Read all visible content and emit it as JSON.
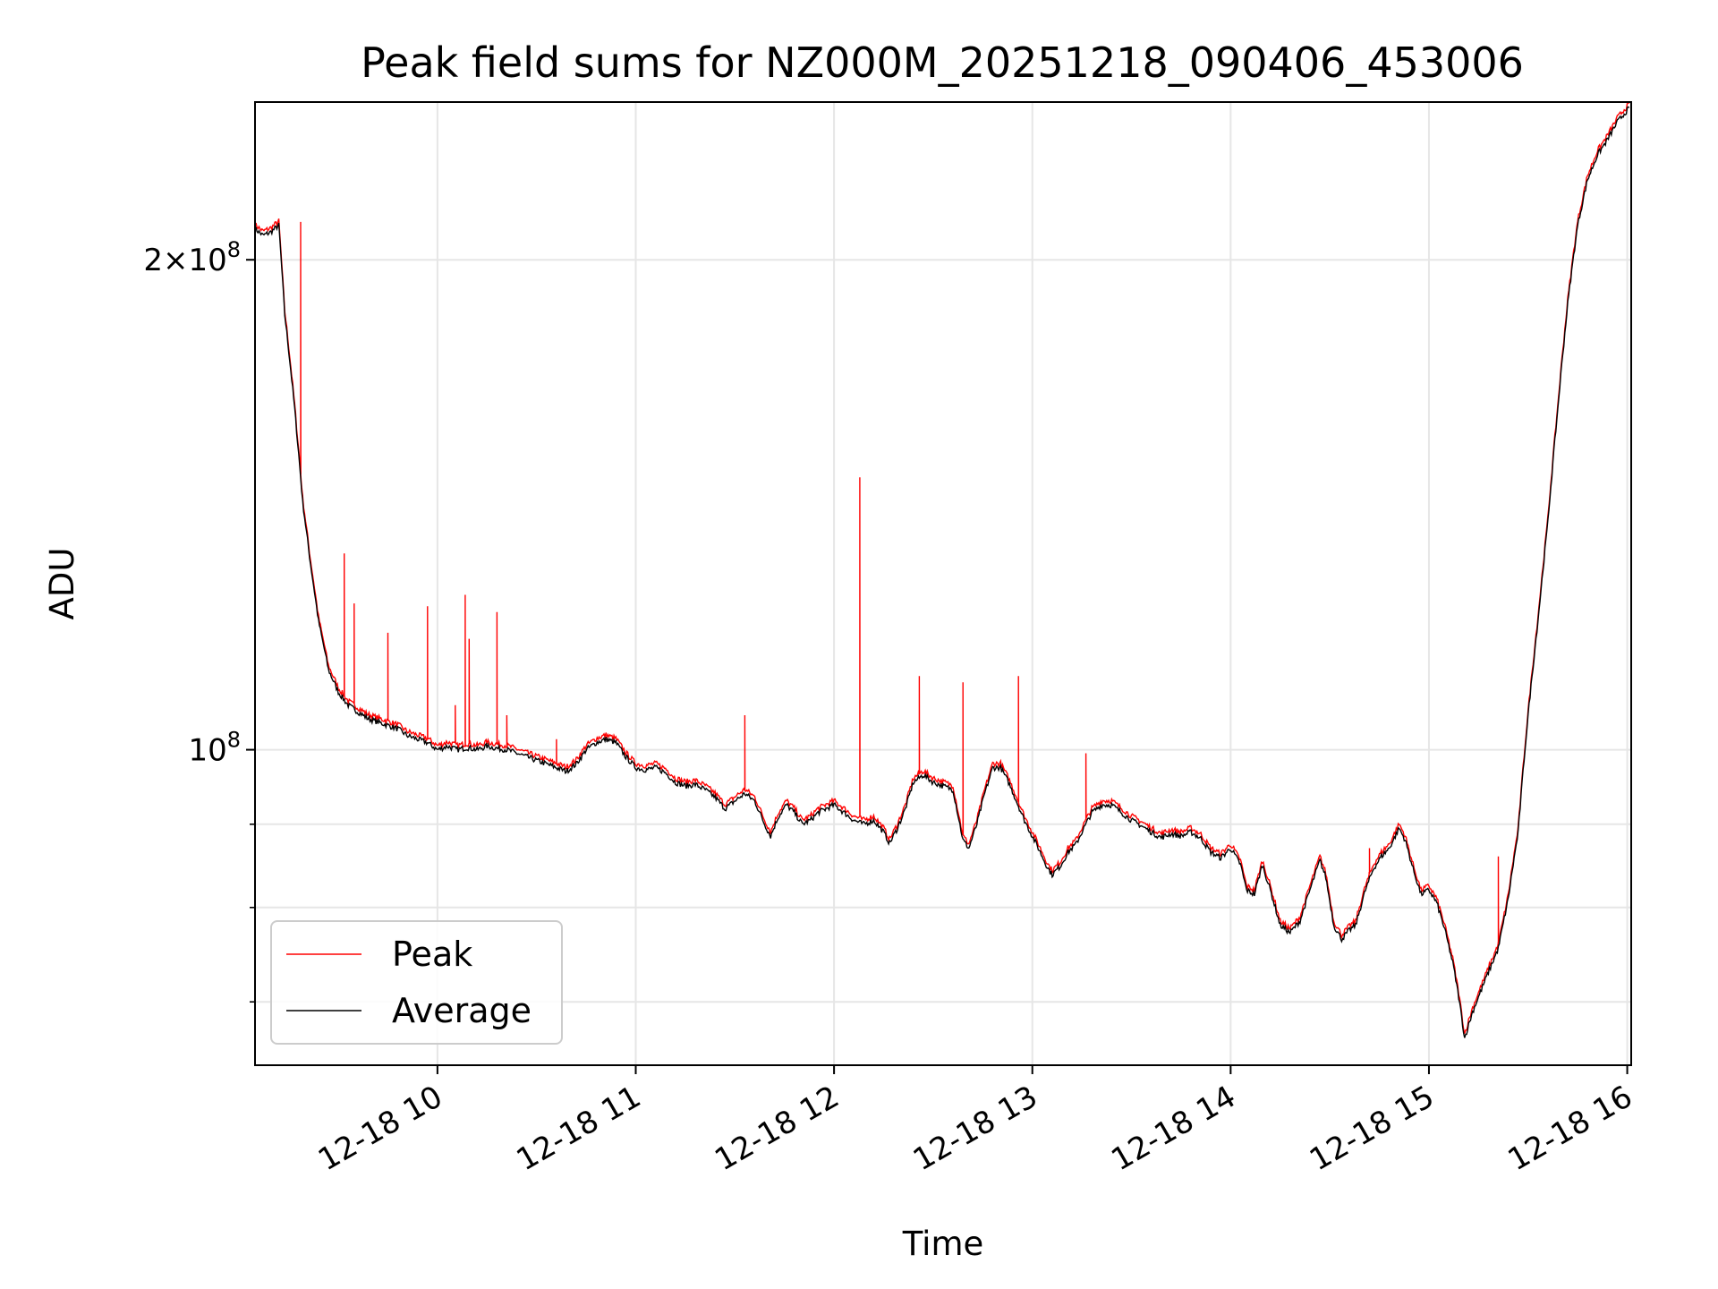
{
  "chart_data": {
    "type": "line",
    "title": "Peak field sums for NZ000M_20251218_090406_453006",
    "xlabel": "Time",
    "ylabel": "ADU",
    "yscale": "log",
    "grid": true,
    "legend_position": "lower-left",
    "xlim": [
      9.08,
      16.02
    ],
    "ylim": [
      64000000,
      250000000
    ],
    "x_ticks": [
      {
        "value": 10,
        "label": "12-18 10"
      },
      {
        "value": 11,
        "label": "12-18 11"
      },
      {
        "value": 12,
        "label": "12-18 12"
      },
      {
        "value": 13,
        "label": "12-18 13"
      },
      {
        "value": 14,
        "label": "12-18 14"
      },
      {
        "value": 15,
        "label": "12-18 15"
      },
      {
        "value": 16,
        "label": "12-18 16"
      }
    ],
    "y_major_ticks": [
      {
        "value": 100000000,
        "base": "10",
        "exp": "8"
      },
      {
        "value": 200000000,
        "mant": "2",
        "base": "10",
        "exp": "8"
      }
    ],
    "y_minor_ticks": [
      70000000,
      80000000,
      90000000
    ],
    "series": [
      {
        "name": "Average",
        "color": "#000000",
        "points": [
          [
            9.08,
            209000000.0
          ],
          [
            9.12,
            207000000.0
          ],
          [
            9.16,
            208000000.0
          ],
          [
            9.2,
            210000000.0
          ],
          [
            9.23,
            185000000.0
          ],
          [
            9.28,
            162000000.0
          ],
          [
            9.32,
            142000000.0
          ],
          [
            9.36,
            130000000.0
          ],
          [
            9.4,
            120000000.0
          ],
          [
            9.45,
            112000000.0
          ],
          [
            9.5,
            108500000.0
          ],
          [
            9.55,
            106500000.0
          ],
          [
            9.6,
            105500000.0
          ],
          [
            9.65,
            104500000.0
          ],
          [
            9.7,
            104000000.0
          ],
          [
            9.75,
            103500000.0
          ],
          [
            9.8,
            103000000.0
          ],
          [
            9.85,
            102000000.0
          ],
          [
            9.9,
            101500000.0
          ],
          [
            9.95,
            101000000.0
          ],
          [
            10.0,
            100000000.0
          ],
          [
            10.05,
            100500000.0
          ],
          [
            10.1,
            100000000.0
          ],
          [
            10.15,
            100300000.0
          ],
          [
            10.2,
            100000000.0
          ],
          [
            10.25,
            100500000.0
          ],
          [
            10.3,
            100200000.0
          ],
          [
            10.35,
            100000000.0
          ],
          [
            10.4,
            99500000.0
          ],
          [
            10.45,
            99000000.0
          ],
          [
            10.5,
            98500000.0
          ],
          [
            10.55,
            98000000.0
          ],
          [
            10.6,
            97500000.0
          ],
          [
            10.65,
            97000000.0
          ],
          [
            10.7,
            98000000.0
          ],
          [
            10.75,
            100000000.0
          ],
          [
            10.8,
            101000000.0
          ],
          [
            10.85,
            101500000.0
          ],
          [
            10.9,
            101000000.0
          ],
          [
            10.95,
            99000000.0
          ],
          [
            11.0,
            97500000.0
          ],
          [
            11.05,
            97200000.0
          ],
          [
            11.1,
            97500000.0
          ],
          [
            11.15,
            96800000.0
          ],
          [
            11.2,
            95500000.0
          ],
          [
            11.25,
            95000000.0
          ],
          [
            11.3,
            95200000.0
          ],
          [
            11.35,
            94500000.0
          ],
          [
            11.4,
            93500000.0
          ],
          [
            11.45,
            92000000.0
          ],
          [
            11.5,
            93000000.0
          ],
          [
            11.55,
            94000000.0
          ],
          [
            11.6,
            93000000.0
          ],
          [
            11.65,
            90000000.0
          ],
          [
            11.68,
            88500000.0
          ],
          [
            11.72,
            91000000.0
          ],
          [
            11.76,
            92500000.0
          ],
          [
            11.8,
            91500000.0
          ],
          [
            11.84,
            90000000.0
          ],
          [
            11.88,
            90500000.0
          ],
          [
            11.92,
            91500000.0
          ],
          [
            11.96,
            92000000.0
          ],
          [
            12.0,
            92500000.0
          ],
          [
            12.05,
            91500000.0
          ],
          [
            12.1,
            90500000.0
          ],
          [
            12.15,
            90000000.0
          ],
          [
            12.2,
            90500000.0
          ],
          [
            12.25,
            89000000.0
          ],
          [
            12.28,
            87600000.0
          ],
          [
            12.32,
            89500000.0
          ],
          [
            12.36,
            92000000.0
          ],
          [
            12.4,
            95500000.0
          ],
          [
            12.45,
            96500000.0
          ],
          [
            12.5,
            95500000.0
          ],
          [
            12.55,
            95000000.0
          ],
          [
            12.6,
            94500000.0
          ],
          [
            12.65,
            88000000.0
          ],
          [
            12.68,
            87000000.0
          ],
          [
            12.72,
            90000000.0
          ],
          [
            12.76,
            94000000.0
          ],
          [
            12.8,
            97500000.0
          ],
          [
            12.84,
            97500000.0
          ],
          [
            12.88,
            95500000.0
          ],
          [
            12.92,
            93000000.0
          ],
          [
            12.96,
            90500000.0
          ],
          [
            13.0,
            88500000.0
          ],
          [
            13.04,
            86500000.0
          ],
          [
            13.08,
            84500000.0
          ],
          [
            13.1,
            83800000.0
          ],
          [
            13.14,
            84800000.0
          ],
          [
            13.18,
            86500000.0
          ],
          [
            13.22,
            87500000.0
          ],
          [
            13.26,
            89500000.0
          ],
          [
            13.3,
            91500000.0
          ],
          [
            13.35,
            92500000.0
          ],
          [
            13.4,
            92500000.0
          ],
          [
            13.45,
            91500000.0
          ],
          [
            13.5,
            90500000.0
          ],
          [
            13.55,
            89800000.0
          ],
          [
            13.6,
            89000000.0
          ],
          [
            13.65,
            88300000.0
          ],
          [
            13.7,
            88800000.0
          ],
          [
            13.75,
            88500000.0
          ],
          [
            13.8,
            89000000.0
          ],
          [
            13.85,
            88200000.0
          ],
          [
            13.9,
            86500000.0
          ],
          [
            13.95,
            85800000.0
          ],
          [
            14.0,
            87000000.0
          ],
          [
            14.05,
            85000000.0
          ],
          [
            14.08,
            82000000.0
          ],
          [
            14.12,
            81500000.0
          ],
          [
            14.16,
            85000000.0
          ],
          [
            14.2,
            82000000.0
          ],
          [
            14.25,
            78000000.0
          ],
          [
            14.3,
            77200000.0
          ],
          [
            14.35,
            78500000.0
          ],
          [
            14.4,
            82000000.0
          ],
          [
            14.45,
            85500000.0
          ],
          [
            14.48,
            83500000.0
          ],
          [
            14.52,
            78000000.0
          ],
          [
            14.56,
            76500000.0
          ],
          [
            14.6,
            77500000.0
          ],
          [
            14.63,
            78000000.0
          ],
          [
            14.68,
            82000000.0
          ],
          [
            14.72,
            84500000.0
          ],
          [
            14.76,
            86000000.0
          ],
          [
            14.8,
            87000000.0
          ],
          [
            14.85,
            89500000.0
          ],
          [
            14.88,
            88000000.0
          ],
          [
            14.92,
            84500000.0
          ],
          [
            14.96,
            81500000.0
          ],
          [
            15.0,
            82000000.0
          ],
          [
            15.04,
            80500000.0
          ],
          [
            15.08,
            77500000.0
          ],
          [
            15.12,
            74000000.0
          ],
          [
            15.15,
            70500000.0
          ],
          [
            15.18,
            66500000.0
          ],
          [
            15.22,
            69000000.0
          ],
          [
            15.26,
            71000000.0
          ],
          [
            15.3,
            73000000.0
          ],
          [
            15.35,
            75500000.0
          ],
          [
            15.4,
            81000000.0
          ],
          [
            15.45,
            89000000.0
          ],
          [
            15.5,
            105000000.0
          ],
          [
            15.55,
            120000000.0
          ],
          [
            15.6,
            138000000.0
          ],
          [
            15.65,
            162000000.0
          ],
          [
            15.7,
            188000000.0
          ],
          [
            15.75,
            210000000.0
          ],
          [
            15.8,
            224000000.0
          ],
          [
            15.85,
            232000000.0
          ],
          [
            15.9,
            237000000.0
          ],
          [
            15.95,
            243000000.0
          ],
          [
            16.01,
            248000000.0
          ]
        ]
      },
      {
        "name": "Peak",
        "color": "#ff0000",
        "offset_ratio": 1.006,
        "spikes": [
          [
            9.31,
            211000000.0
          ],
          [
            9.53,
            132000000.0
          ],
          [
            9.58,
            123000000.0
          ],
          [
            9.75,
            118000000.0
          ],
          [
            9.95,
            122500000.0
          ],
          [
            10.09,
            106500000.0
          ],
          [
            10.14,
            124500000.0
          ],
          [
            10.16,
            117000000.0
          ],
          [
            10.3,
            121500000.0
          ],
          [
            10.35,
            105000000.0
          ],
          [
            10.6,
            101500000.0
          ],
          [
            11.55,
            105000000.0
          ],
          [
            12.13,
            147000000.0
          ],
          [
            12.43,
            111000000.0
          ],
          [
            12.65,
            110000000.0
          ],
          [
            12.93,
            111000000.0
          ],
          [
            13.27,
            99500000.0
          ],
          [
            14.7,
            87000000.0
          ],
          [
            15.35,
            86000000.0
          ]
        ]
      }
    ]
  }
}
